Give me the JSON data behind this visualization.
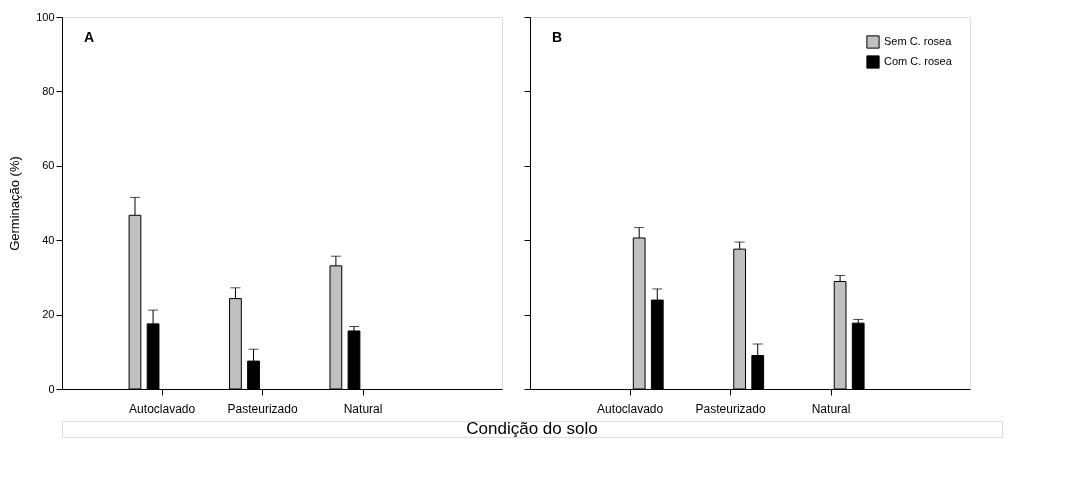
{
  "chart_data": [
    {
      "type": "bar",
      "annotations": [
        "A"
      ],
      "xlabel": "Condição do solo",
      "ylabel": "Germinação (%)",
      "categories": [
        "Autoclavado",
        "Pasteurizado",
        "Natural"
      ],
      "ylim": [
        0,
        100
      ],
      "yticks": [
        0,
        20,
        40,
        60,
        80,
        100
      ],
      "grid": false,
      "legend": false,
      "series": [
        {
          "color": "#c0c0c0",
          "values": [
            46.7,
            24.3,
            33.1
          ],
          "errors": [
            [
              46.7,
              51.5
            ],
            [
              24.3,
              27.2
            ],
            [
              33.1,
              35.7
            ]
          ]
        },
        {
          "color": "#000000",
          "values": [
            17.5,
            7.5,
            15.6
          ],
          "errors": [
            [
              17.5,
              21.2
            ],
            [
              7.5,
              10.7
            ],
            [
              15.6,
              16.8
            ]
          ]
        }
      ]
    },
    {
      "type": "bar",
      "annotations": [
        "B"
      ],
      "categories": [
        "Autoclavado",
        "Pasteurizado",
        "Natural"
      ],
      "ylim": [
        0,
        100
      ],
      "yticks": [
        0,
        20,
        40,
        60,
        80,
        100
      ],
      "grid": false,
      "legend": "top right",
      "tick_labels": "x",
      "series": [
        {
          "name": "Sem C. rosea",
          "color": "#c0c0c0",
          "values": [
            40.6,
            37.6,
            28.9
          ],
          "errors": [
            [
              40.6,
              43.4
            ],
            [
              37.6,
              39.5
            ],
            [
              28.9,
              30.5
            ]
          ]
        },
        {
          "name": "Com C. rosea",
          "color": "#000000",
          "values": [
            23.9,
            9.0,
            17.7
          ],
          "errors": [
            [
              23.9,
              26.9
            ],
            [
              9.0,
              12.1
            ],
            [
              17.7,
              18.7
            ]
          ]
        }
      ]
    }
  ]
}
